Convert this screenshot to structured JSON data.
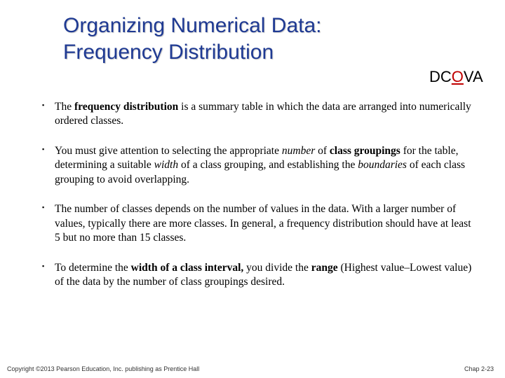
{
  "title_line1": "Organizing Numerical Data:",
  "title_line2": "Frequency Distribution",
  "dcova": {
    "d": "D",
    "c": "C",
    "o": "O",
    "v": "V",
    "a": "A"
  },
  "bullets": {
    "b1": {
      "t1": "The ",
      "bold1": "frequency distribution",
      "t2": " is a summary table in which the data are arranged into numerically ordered classes."
    },
    "b2": {
      "t1": "You must give attention to selecting the appropriate ",
      "it1": "number",
      "t2": " of ",
      "bold1": "class groupings",
      "t3": " for the table, determining a suitable ",
      "it2": "width",
      "t4": " of a class grouping, and establishing the ",
      "it3": "boundaries",
      "t5": " of each class grouping to avoid overlapping."
    },
    "b3": {
      "t1": "The number of classes depends on the number of values in the data.  With a larger number of values, typically there are more classes.  In general, a frequency distribution should have at least 5 but no more than 15 classes."
    },
    "b4": {
      "t1": "To determine the ",
      "bold1": "width of a class interval,",
      "t2": " you divide the ",
      "bold2": "range",
      "t3": " (Highest value–Lowest value) of the data by the number of class groupings desired."
    }
  },
  "footer": {
    "left": "Copyright ©2013 Pearson Education, Inc. publishing as Prentice Hall",
    "right": "Chap 2-23"
  },
  "colors": {
    "title": "#1f3a93",
    "dcova_o": "#c00000",
    "background": "#ffffff",
    "text": "#000000"
  }
}
